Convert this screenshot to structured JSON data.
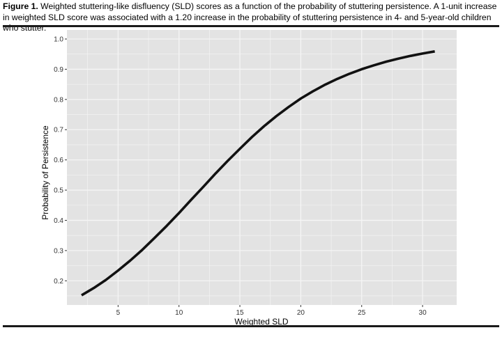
{
  "caption": {
    "label": "Figure 1.",
    "text": " Weighted stuttering-like disfluency (SLD) scores as a function of the probability of stuttering persistence. A 1-unit increase in weighted SLD score was associated with a 1.20 increase in the probability of stuttering persistence in 4- and 5-year-old children who stutter."
  },
  "chart_data": {
    "type": "line",
    "xlabel": "Weighted SLD",
    "ylabel": "Probability of Persistence",
    "xlim": [
      0.8,
      32.8
    ],
    "ylim": [
      0.12,
      1.03
    ],
    "xticks": [
      5,
      10,
      15,
      20,
      25,
      30
    ],
    "yticks": [
      0.2,
      0.3,
      0.4,
      0.5,
      0.6,
      0.7,
      0.8,
      0.9,
      1.0
    ],
    "ytick_labels": [
      "0.2",
      "0.3",
      "0.4",
      "0.5",
      "0.6",
      "0.7",
      "0.8",
      "0.9",
      "1.0"
    ],
    "grid": true,
    "colors": {
      "panel": "#e3e3e3",
      "grid": "#f5f5f5",
      "line": "#111111"
    },
    "series": [
      {
        "x": [
          2,
          3,
          4,
          5,
          6,
          7,
          8,
          9,
          10,
          11,
          12,
          13,
          14,
          15,
          16,
          17,
          18,
          19,
          20,
          21,
          22,
          23,
          24,
          25,
          26,
          27,
          28,
          29,
          30,
          31
        ],
        "values": [
          0.152,
          0.176,
          0.203,
          0.234,
          0.267,
          0.303,
          0.342,
          0.382,
          0.424,
          0.468,
          0.511,
          0.555,
          0.597,
          0.637,
          0.676,
          0.712,
          0.745,
          0.775,
          0.803,
          0.827,
          0.849,
          0.868,
          0.885,
          0.9,
          0.913,
          0.925,
          0.935,
          0.944,
          0.952,
          0.959
        ]
      }
    ]
  }
}
